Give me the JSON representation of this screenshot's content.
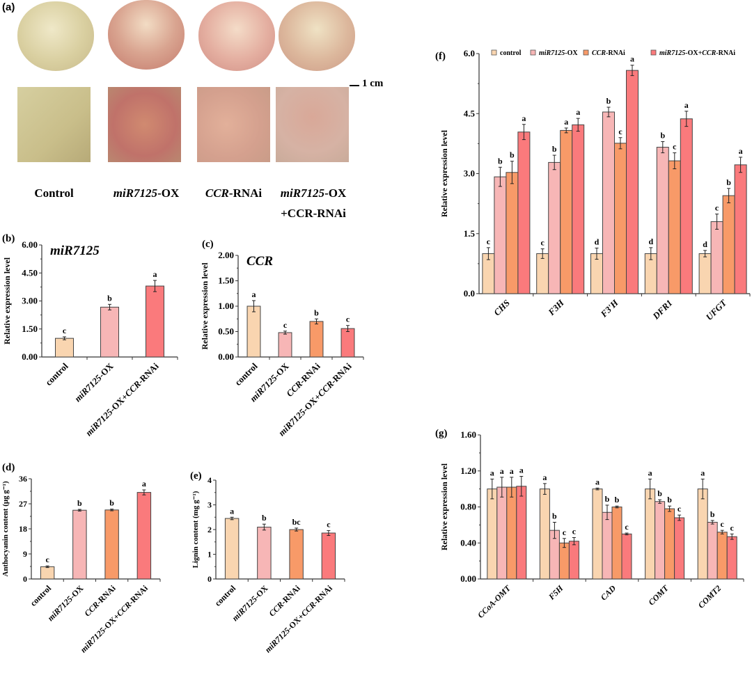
{
  "panel_a": {
    "label": "(a)",
    "scale_bar": "1 cm",
    "samples": [
      {
        "name_italic": "",
        "name_rest": "Control",
        "line2": ""
      },
      {
        "name_italic": "miR7125",
        "name_rest": "-OX",
        "line2": ""
      },
      {
        "name_italic": "CCR",
        "name_rest": "-RNAi",
        "line2": ""
      },
      {
        "name_italic": "miR7125",
        "name_rest": "-OX",
        "line2": "+CCR-RNAi"
      }
    ]
  },
  "colors": {
    "control": "#f9d5b0",
    "ox": "#f7b6b6",
    "rnai": "#f89a68",
    "combo": "#fa7a7c"
  },
  "chart_data": [
    {
      "id": "b",
      "panel_label": "(b)",
      "type": "bar",
      "title": "miR7125",
      "ylabel": "Relative expression level",
      "ylim": [
        0,
        6
      ],
      "yticks": [
        "0.00",
        "1.50",
        "3.00",
        "4.50",
        "6.00"
      ],
      "categories": [
        "control",
        "miR7125-OX",
        "miR7125-OX+CCR-RNAi"
      ],
      "series": [
        {
          "name": "value",
          "values": [
            1.0,
            2.67,
            3.8
          ],
          "errors": [
            0.08,
            0.15,
            0.3
          ],
          "letters": [
            "c",
            "b",
            "a"
          ],
          "color_keys": [
            "control",
            "ox",
            "combo"
          ]
        }
      ]
    },
    {
      "id": "c",
      "panel_label": "(c)",
      "type": "bar",
      "title": "CCR",
      "ylabel": "Relative expression level",
      "ylim": [
        0,
        2
      ],
      "yticks": [
        "0.00",
        "0.50",
        "1.00",
        "1.50",
        "2.00"
      ],
      "categories": [
        "control",
        "miR7125-OX",
        "CCR-RNAi",
        "miR7125-OX+CCR-RNAi"
      ],
      "series": [
        {
          "name": "value",
          "values": [
            1.0,
            0.48,
            0.7,
            0.56
          ],
          "errors": [
            0.11,
            0.03,
            0.05,
            0.06
          ],
          "letters": [
            "a",
            "c",
            "b",
            "c"
          ],
          "color_keys": [
            "control",
            "ox",
            "rnai",
            "combo"
          ]
        }
      ]
    },
    {
      "id": "d",
      "panel_label": "(d)",
      "type": "bar",
      "title": "",
      "ylabel": "Anthocyanin content (μg g⁻¹)",
      "ylim": [
        0,
        36
      ],
      "yticks": [
        "0",
        "9",
        "18",
        "27",
        "36"
      ],
      "categories": [
        "control",
        "miR7125-OX",
        "CCR-RNAi",
        "miR7125-OX+CCR-RNAi"
      ],
      "series": [
        {
          "name": "value",
          "values": [
            4.4,
            24.7,
            24.8,
            31.1
          ],
          "errors": [
            0.3,
            0.3,
            0.3,
            0.9
          ],
          "letters": [
            "c",
            "b",
            "b",
            "a"
          ],
          "color_keys": [
            "control",
            "ox",
            "rnai",
            "combo"
          ]
        }
      ]
    },
    {
      "id": "e",
      "panel_label": "(e)",
      "type": "bar",
      "title": "",
      "ylabel": "Lignin content (mg g⁻¹)",
      "ylim": [
        0,
        4
      ],
      "yticks": [
        "0",
        "1",
        "2",
        "3",
        "4"
      ],
      "categories": [
        "control",
        "miR7125-OX",
        "CCR-RNAi",
        "miR7125-OX+CCR-RNAi"
      ],
      "series": [
        {
          "name": "value",
          "values": [
            2.45,
            2.1,
            2.0,
            1.86
          ],
          "errors": [
            0.05,
            0.12,
            0.06,
            0.1
          ],
          "letters": [
            "a",
            "b",
            "bc",
            "c"
          ],
          "color_keys": [
            "control",
            "ox",
            "rnai",
            "combo"
          ]
        }
      ]
    },
    {
      "id": "f",
      "panel_label": "(f)",
      "type": "bar",
      "title": "",
      "ylabel": "Relative expression level",
      "ylim": [
        0,
        6
      ],
      "yticks": [
        "0.0",
        "1.5",
        "3.0",
        "4.5",
        "6.0"
      ],
      "categories": [
        "CHS",
        "F3H",
        "F3'H",
        "DFR1",
        "UFGT"
      ],
      "legend": [
        "control",
        "miR7125-OX",
        "CCR-RNAi",
        "miR7125-OX+CCR-RNAi"
      ],
      "legend_position": "top",
      "series": [
        {
          "name": "control",
          "color_key": "control",
          "values": [
            1,
            1,
            1,
            1,
            1
          ],
          "errors": [
            0.15,
            0.12,
            0.14,
            0.15,
            0.08
          ],
          "letters": [
            "c",
            "c",
            "d",
            "d",
            "d"
          ]
        },
        {
          "name": "miR7125-OX",
          "color_key": "ox",
          "values": [
            2.92,
            3.28,
            4.54,
            3.66,
            1.8
          ],
          "errors": [
            0.24,
            0.18,
            0.12,
            0.14,
            0.19
          ],
          "letters": [
            "b",
            "b",
            "b",
            "b",
            "c"
          ]
        },
        {
          "name": "CCR-RNAi",
          "color_key": "rnai",
          "values": [
            3.03,
            4.08,
            3.76,
            3.32,
            2.45
          ],
          "errors": [
            0.28,
            0.06,
            0.14,
            0.2,
            0.18
          ],
          "letters": [
            "b",
            "a",
            "c",
            "c",
            "b"
          ]
        },
        {
          "name": "miR7125-OX+CCR-RNAi",
          "color_key": "combo",
          "values": [
            4.04,
            4.22,
            5.58,
            4.37,
            3.22
          ],
          "errors": [
            0.19,
            0.16,
            0.13,
            0.19,
            0.19
          ],
          "letters": [
            "a",
            "a",
            "a",
            "a",
            "a"
          ]
        }
      ]
    },
    {
      "id": "g",
      "panel_label": "(g)",
      "type": "bar",
      "title": "",
      "ylabel": "Relative expression level",
      "ylim": [
        0,
        1.6
      ],
      "yticks": [
        "0.00",
        "0.40",
        "0.80",
        "1.20",
        "1.60"
      ],
      "categories": [
        "CCoA-OMT",
        "F5H",
        "CAD",
        "COMT",
        "COMT2"
      ],
      "series": [
        {
          "name": "control",
          "color_key": "control",
          "values": [
            1,
            1,
            1,
            1,
            1
          ],
          "errors": [
            0.11,
            0.06,
            0.01,
            0.11,
            0.11
          ],
          "letters": [
            "a",
            "a",
            "a",
            "a",
            "a"
          ]
        },
        {
          "name": "miR7125-OX",
          "color_key": "ox",
          "values": [
            1.02,
            0.54,
            0.74,
            0.86,
            0.63
          ],
          "errors": [
            0.11,
            0.09,
            0.08,
            0.02,
            0.02
          ],
          "letters": [
            "a",
            "b",
            "b",
            "b",
            "b"
          ]
        },
        {
          "name": "CCR-RNAi",
          "color_key": "rnai",
          "values": [
            1.02,
            0.4,
            0.8,
            0.78,
            0.52
          ],
          "errors": [
            0.11,
            0.05,
            0.01,
            0.03,
            0.02
          ],
          "letters": [
            "a",
            "c",
            "b",
            "b",
            "c"
          ]
        },
        {
          "name": "miR7125-OX+CCR-RNAi",
          "color_key": "combo",
          "values": [
            1.03,
            0.42,
            0.5,
            0.68,
            0.47
          ],
          "errors": [
            0.11,
            0.04,
            0.01,
            0.03,
            0.03
          ],
          "letters": [
            "a",
            "c",
            "c",
            "c",
            "c"
          ]
        }
      ]
    }
  ]
}
